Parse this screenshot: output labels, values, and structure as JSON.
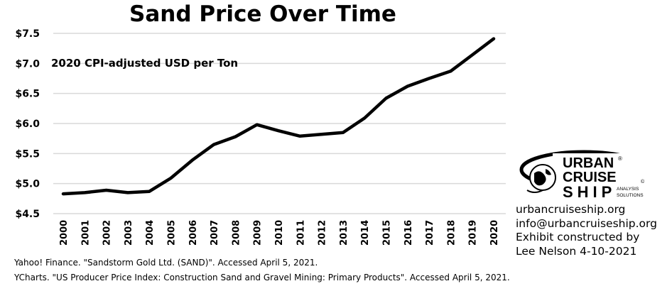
{
  "chart_data": {
    "type": "line",
    "title": "Sand Price Over Time",
    "ylabel": "2020 CPI-adjusted USD per Ton",
    "xlabel": "",
    "categories": [
      "2000",
      "2001",
      "2002",
      "2003",
      "2004",
      "2005",
      "2006",
      "2007",
      "2008",
      "2009",
      "2010",
      "2011",
      "2012",
      "2013",
      "2014",
      "2015",
      "2016",
      "2017",
      "2018",
      "2019",
      "2020"
    ],
    "values": [
      4.83,
      4.85,
      4.89,
      4.85,
      4.87,
      5.09,
      5.39,
      5.65,
      5.78,
      5.98,
      5.88,
      5.79,
      5.82,
      5.85,
      6.09,
      6.42,
      6.62,
      6.75,
      6.87,
      7.14,
      7.41
    ],
    "ylim": [
      4.5,
      7.5
    ],
    "yticks": [
      4.5,
      5.0,
      5.5,
      6.0,
      6.5,
      7.0,
      7.5
    ],
    "ytick_labels": [
      "$4.5",
      "$5.0",
      "$5.5",
      "$6.0",
      "$6.5",
      "$7.0",
      "$7.5"
    ],
    "grid": "horizontal",
    "line_color": "#000000",
    "grid_color": "#d9d9d9"
  },
  "logo": {
    "line1": "URBAN",
    "line2": "CRUISE",
    "line3": "SHIP",
    "registered": "®",
    "copyright": "©",
    "tagline1": "ANALYSIS",
    "tagline2": "SOLUTIONS"
  },
  "contact": {
    "website": "urbancruiseship.org",
    "email": "info@urbancruiseship.org",
    "line3": "Exhibit constructed by",
    "line4": "Lee Nelson 4-10-2021"
  },
  "sources": [
    "Yahoo! Finance. \"Sandstorm Gold Ltd. (SAND)\". Accessed April 5, 2021.",
    "YCharts. \"US Producer Price Index: Construction Sand and Gravel Mining: Primary Products\". Accessed April 5, 2021."
  ]
}
